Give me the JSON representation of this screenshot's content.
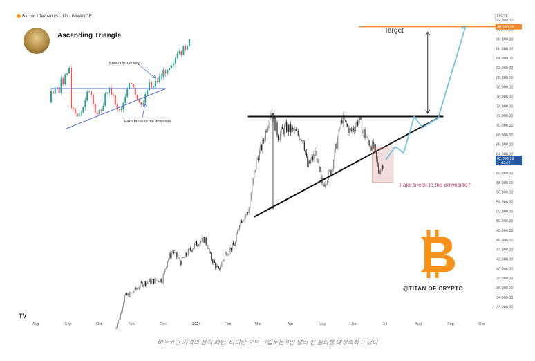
{
  "header": {
    "symbol": "Bitcoin / TetherUS · 1D · BINANCE",
    "currency": "USDT"
  },
  "inset": {
    "title": "Ascending Triangle",
    "break_up_label": "Break Up: Go long",
    "fake_break_label": "Fake break to the downside"
  },
  "annotations": {
    "target": "Target",
    "fake_break": "Fake break to the downside?",
    "watermark": "@TITAN OF CRYPTO",
    "target_price": "90,580.28",
    "current_price": "62,899.99",
    "countdown": "14:52:50"
  },
  "caption": "비트코인 가격의 삼각 패턴. 타이탄 오브 크립토는 9만 달러 선 돌파를 예정측하고 있다",
  "tv_logo": "TV",
  "colors": {
    "candle_up": "#888888",
    "candle_down": "#222222",
    "projection": "#6cc3e0",
    "target_line": "#f28c28",
    "triangle": "#111111",
    "bitcoin_orange": "#f7931a"
  },
  "chart_data": {
    "type": "candlestick",
    "title": "",
    "xlabel": "",
    "ylabel": "",
    "x_ticks": [
      "Aug",
      "Sep",
      "Oct",
      "Nov",
      "Dec",
      "2024",
      "Feb",
      "Mar",
      "Apr",
      "May",
      "Jun",
      "Jul",
      "Aug",
      "Sep",
      "Oct"
    ],
    "y_ticks": [
      "92,000.00",
      "90,000.00",
      "88,000.00",
      "86,000.00",
      "84,000.00",
      "82,000.00",
      "80,000.00",
      "78,000.00",
      "76,000.00",
      "74,000.00",
      "72,000.00",
      "70,000.00",
      "68,000.00",
      "66,000.00",
      "64,000.00",
      "62,000.00",
      "60,000.00",
      "58,000.00",
      "56,000.00",
      "54,000.00",
      "52,000.00",
      "50,000.00",
      "48,000.00",
      "46,000.00",
      "44,000.00",
      "42,000.00",
      "40,000.00",
      "38,000.00",
      "36,000.00",
      "34,000.00",
      "32,000.00"
    ],
    "ylim": [
      30500,
      93000
    ],
    "series_close": [
      [
        "2023-10-15",
        27000
      ],
      [
        "2023-10-20",
        29700
      ],
      [
        "2023-10-25",
        34200
      ],
      [
        "2023-11-01",
        34800
      ],
      [
        "2023-11-10",
        36800
      ],
      [
        "2023-11-20",
        37400
      ],
      [
        "2023-11-30",
        37700
      ],
      [
        "2023-12-05",
        41800
      ],
      [
        "2023-12-10",
        43600
      ],
      [
        "2023-12-18",
        41400
      ],
      [
        "2023-12-25",
        43500
      ],
      [
        "2024-01-02",
        45300
      ],
      [
        "2024-01-10",
        46100
      ],
      [
        "2024-01-15",
        42500
      ],
      [
        "2024-01-23",
        39500
      ],
      [
        "2024-01-30",
        43200
      ],
      [
        "2024-02-08",
        45300
      ],
      [
        "2024-02-12",
        49800
      ],
      [
        "2024-02-20",
        51700
      ],
      [
        "2024-02-28",
        62500
      ],
      [
        "2024-03-05",
        66000
      ],
      [
        "2024-03-13",
        73100
      ],
      [
        "2024-03-20",
        67800
      ],
      [
        "2024-03-27",
        69500
      ],
      [
        "2024-04-05",
        68500
      ],
      [
        "2024-04-13",
        67100
      ],
      [
        "2024-04-17",
        61300
      ],
      [
        "2024-04-25",
        64200
      ],
      [
        "2024-05-01",
        57200
      ],
      [
        "2024-05-10",
        60800
      ],
      [
        "2024-05-20",
        71400
      ],
      [
        "2024-05-28",
        68500
      ],
      [
        "2024-06-05",
        71100
      ],
      [
        "2024-06-12",
        67300
      ],
      [
        "2024-06-20",
        64900
      ],
      [
        "2024-06-24",
        60300
      ],
      [
        "2024-06-30",
        62700
      ]
    ],
    "lines": {
      "resistance": 71800,
      "target": 90580.28,
      "current": 62899.99,
      "support_start": [
        "2024-02-26",
        50800
      ],
      "support_end": [
        "2024-08-20",
        71500
      ]
    },
    "projection": [
      [
        "2024-07-01",
        62800
      ],
      [
        "2024-07-10",
        65500
      ],
      [
        "2024-07-18",
        64200
      ],
      [
        "2024-07-28",
        71800
      ],
      [
        "2024-08-05",
        69500
      ],
      [
        "2024-08-20",
        71500
      ],
      [
        "2024-09-15",
        90500
      ]
    ],
    "legend": "none",
    "grid": false
  }
}
